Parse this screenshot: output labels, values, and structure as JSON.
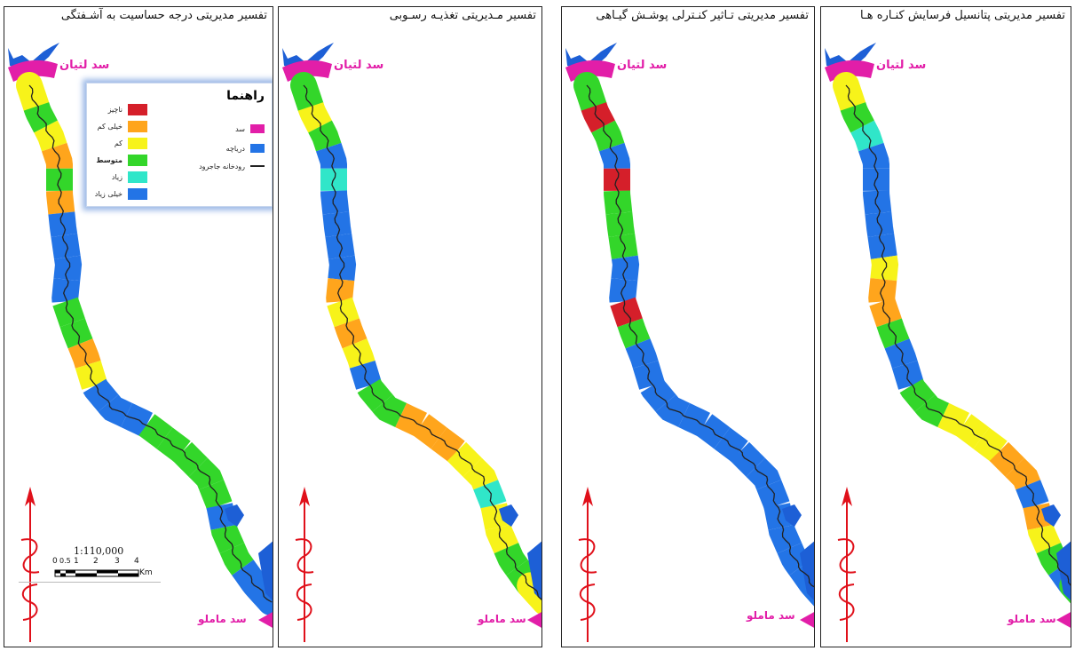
{
  "panels": [
    {
      "title": "تفسیر مدیریتی درجه حساسیت به آشـفتگی",
      "segments": [
        "#f7f31a",
        "#33d62a",
        "#f7f31a",
        "#ffa51c",
        "#33d62a",
        "#ffa51c",
        "#2374e6",
        "#2374e6",
        "#2374e6",
        "#2374e6",
        "#33d62a",
        "#33d62a",
        "#ffa51c",
        "#f7f31a",
        "#2374e6",
        "#2374e6",
        "#2374e6",
        "#33d62a",
        "#33d62a",
        "#33d62a",
        "#33d62a",
        "#33d62a",
        "#2374e6",
        "#33d62a",
        "#33d62a",
        "#2374e6",
        "#2374e6"
      ]
    },
    {
      "title": "تفسیر مـدیریتی تغذیـه رسـوبی",
      "segments": [
        "#33d62a",
        "#f7f31a",
        "#33d62a",
        "#2374e6",
        "#30e6c9",
        "#2374e6",
        "#2374e6",
        "#2374e6",
        "#2374e6",
        "#ffa51c",
        "#f7f31a",
        "#ffa51c",
        "#f7f31a",
        "#2374e6",
        "#33d62a",
        "#33d62a",
        "#ffa51c",
        "#ffa51c",
        "#ffa51c",
        "#f7f31a",
        "#f7f31a",
        "#30e6c9",
        "#f7f31a",
        "#f7f31a",
        "#33d62a",
        "#33d62a",
        "#f7f31a"
      ]
    },
    {
      "title": "تفسیر مدیریتی تـاثیر کنـترلی پوشـش گیـاهی",
      "segments": [
        "#33d62a",
        "#d51f2a",
        "#33d62a",
        "#2374e6",
        "#d51f2a",
        "#33d62a",
        "#33d62a",
        "#33d62a",
        "#2374e6",
        "#2374e6",
        "#d51f2a",
        "#33d62a",
        "#2374e6",
        "#2374e6",
        "#2374e6",
        "#2374e6",
        "#2374e6",
        "#2374e6",
        "#2374e6",
        "#2374e6",
        "#2374e6",
        "#2374e6",
        "#2374e6",
        "#2374e6",
        "#2374e6",
        "#2374e6",
        "#2374e6"
      ]
    },
    {
      "title": "تفسیر مدیریتی پتانسیل فرسایش کنـاره هـا",
      "segments": [
        "#f7f31a",
        "#33d62a",
        "#30e6c9",
        "#2374e6",
        "#2374e6",
        "#2374e6",
        "#2374e6",
        "#2374e6",
        "#f7f31a",
        "#ffa51c",
        "#ffa51c",
        "#33d62a",
        "#2374e6",
        "#2374e6",
        "#33d62a",
        "#33d62a",
        "#f7f31a",
        "#f7f31a",
        "#f7f31a",
        "#ffa51c",
        "#ffa51c",
        "#2374e6",
        "#ffa51c",
        "#f7f31a",
        "#33d62a",
        "#2374e6",
        "#33d62a"
      ]
    }
  ],
  "dam_top": "سد لتیان",
  "dam_bottom": "سد ماملو",
  "legend": {
    "title": "راهنما",
    "classes": [
      {
        "label": "ناچیز",
        "color": "#d51f2a"
      },
      {
        "label": "خیلی کم",
        "color": "#ffa51c"
      },
      {
        "label": "کم",
        "color": "#f7f31a"
      },
      {
        "label": "متوسط",
        "color": "#33d62a"
      },
      {
        "label": "زیاد",
        "color": "#30e6c9"
      },
      {
        "label": "خیلی زیاد",
        "color": "#2374e6"
      }
    ],
    "features": [
      {
        "label": "سد",
        "color": "#e21ea8"
      },
      {
        "label": "دریاچه",
        "color": "#2374e6"
      },
      {
        "label": "رودخانه جاجرود",
        "color": "#222222"
      }
    ]
  },
  "scale": {
    "ratio": "1:110,000",
    "ticks": [
      "0",
      "0.5",
      "1",
      "2",
      "3",
      "4"
    ],
    "unit": "Km"
  },
  "colors": {
    "dam": "#e21ea8",
    "lake": "#1d5fd6",
    "river": "#222222",
    "north_arrow": "#e0101a"
  }
}
